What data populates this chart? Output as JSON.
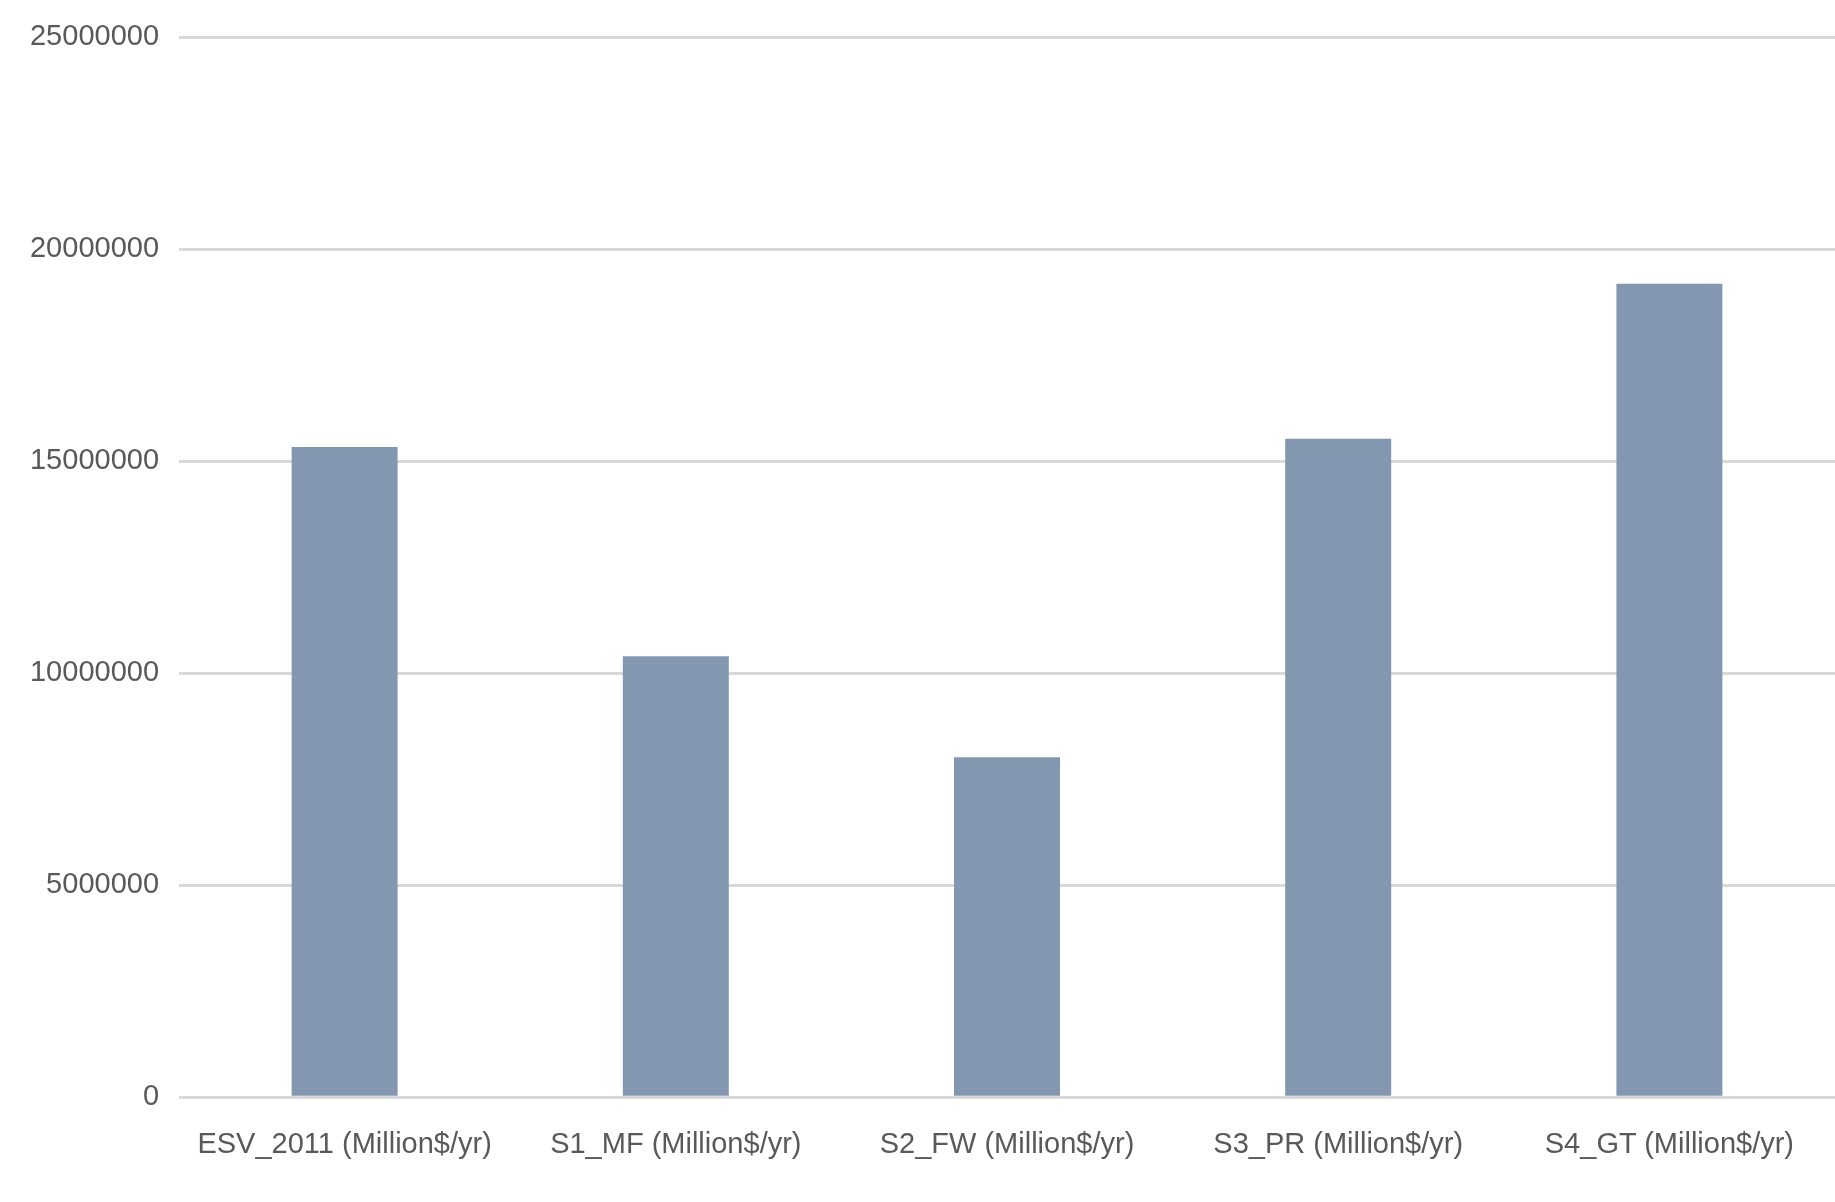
{
  "chart_data": {
    "type": "bar",
    "categories": [
      "ESV_2011 (Million$/yr)",
      "S1_MF (Million$/yr)",
      "S2_FW (Million$/yr)",
      "S3_PR (Million$/yr)",
      "S4_GT (Million$/yr)"
    ],
    "values": [
      15340000,
      10400000,
      8020000,
      15530000,
      19190000
    ],
    "color": "#8497b0",
    "ylim": [
      0,
      25000000
    ],
    "yticks": [
      0,
      5000000,
      10000000,
      15000000,
      20000000,
      25000000
    ],
    "grid": "y",
    "legend": false
  }
}
